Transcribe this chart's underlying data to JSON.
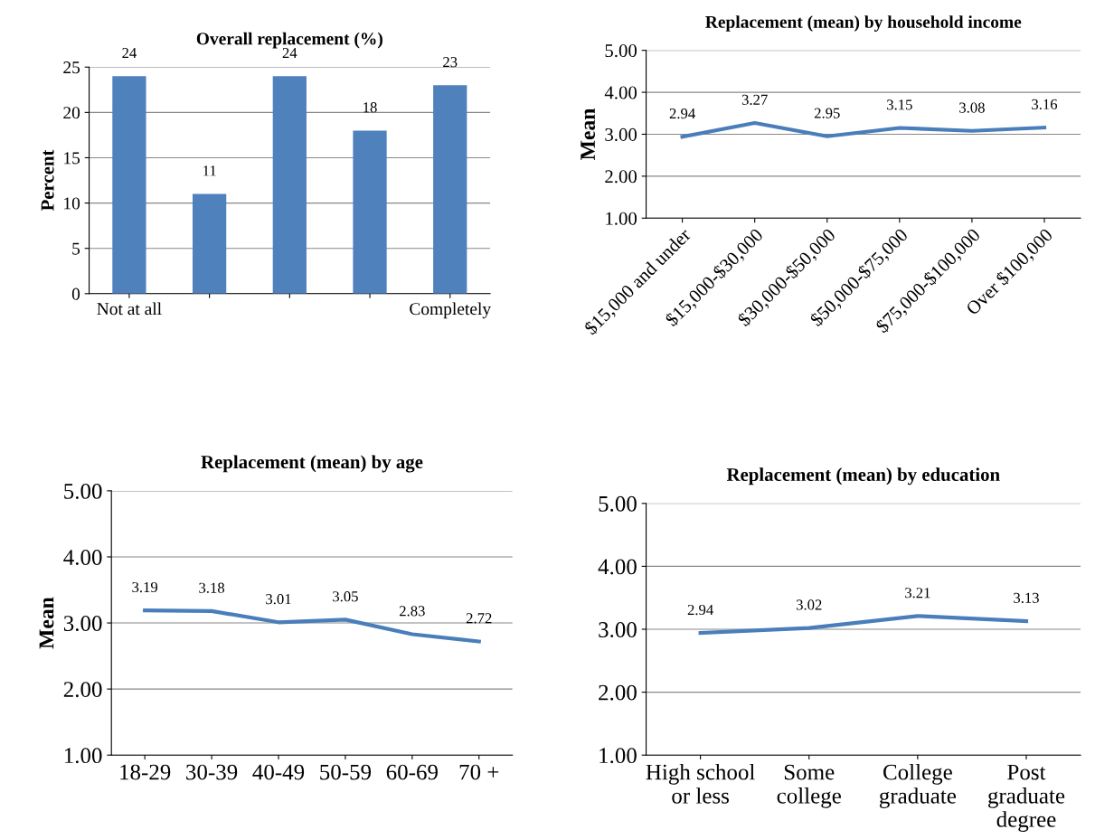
{
  "chart_data": [
    {
      "type": "bar",
      "title": "Overall replacement (%)",
      "ylabel": "Percent",
      "categories": [
        "Not at all",
        null,
        null,
        null,
        "Completely"
      ],
      "values": [
        24,
        11,
        24,
        18,
        23
      ],
      "color": "#4f81bd",
      "ylim": [
        0,
        25
      ],
      "yticks": [
        0,
        5,
        10,
        15,
        20,
        25
      ],
      "grid": "y",
      "data_labels": true
    },
    {
      "type": "line",
      "title": "Replacement (mean) by household income",
      "ylabel": "Mean",
      "categories": [
        "$15,000 and under",
        "$15,000-$30,000",
        "$30,000-$50,000",
        "$50,000-$75,000",
        "$75,000-$100,000",
        "Over $100,000"
      ],
      "values": [
        2.94,
        3.27,
        2.95,
        3.15,
        3.08,
        3.16
      ],
      "color": "#4a7ebb",
      "ylim": [
        1,
        5
      ],
      "yticks": [
        {
          "value": 1,
          "label": "1.00"
        },
        {
          "value": 2,
          "label": "2.00"
        },
        {
          "value": 3,
          "label": "3.00"
        },
        {
          "value": 4,
          "label": "4.00"
        },
        {
          "value": 5,
          "label": "5.00"
        }
      ],
      "grid": "y",
      "data_labels": true
    },
    {
      "type": "line",
      "title": "Replacement (mean) by age",
      "ylabel": "Mean",
      "categories": [
        "18-29",
        "30-39",
        "40-49",
        "50-59",
        "60-69",
        "70 +"
      ],
      "values": [
        3.19,
        3.18,
        3.01,
        3.05,
        2.83,
        2.72
      ],
      "color": "#4a7ebb",
      "ylim": [
        1,
        5
      ],
      "yticks": [
        {
          "value": 1,
          "label": "1.00"
        },
        {
          "value": 2,
          "label": "2.00"
        },
        {
          "value": 3,
          "label": "3.00"
        },
        {
          "value": 4,
          "label": "4.00"
        },
        {
          "value": 5,
          "label": "5.00"
        }
      ],
      "grid": "y",
      "data_labels": true
    },
    {
      "type": "line",
      "title": "Replacement (mean) by education",
      "categories": [
        "High school\nor less",
        "Some\ncollege",
        "College\ngraduate",
        "Post\ngraduate\ndegree"
      ],
      "values": [
        2.94,
        3.02,
        3.21,
        3.13
      ],
      "color": "#4a7ebb",
      "ylim": [
        1,
        5
      ],
      "yticks": [
        {
          "value": 1,
          "label": "1.00"
        },
        {
          "value": 2,
          "label": "2.00"
        },
        {
          "value": 3,
          "label": "3.00"
        },
        {
          "value": 4,
          "label": "4.00"
        },
        {
          "value": 5,
          "label": "5.00"
        }
      ],
      "grid": "y",
      "data_labels": true
    }
  ]
}
